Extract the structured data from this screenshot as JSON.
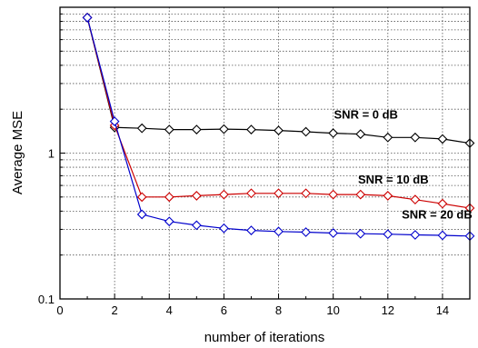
{
  "chart_data": {
    "type": "line",
    "title": "",
    "xlabel": "number of iterations",
    "ylabel": "Average MSE",
    "xlim": [
      0,
      15
    ],
    "ylim": [
      0.1,
      10
    ],
    "yscale": "log",
    "grid": true,
    "x_ticks": [
      "0",
      "2",
      "4",
      "6",
      "8",
      "10",
      "12",
      "14"
    ],
    "y_ticks": [
      "0.1",
      "1"
    ],
    "x": [
      1,
      2,
      3,
      4,
      5,
      6,
      7,
      8,
      9,
      10,
      11,
      12,
      13,
      14,
      15
    ],
    "series": [
      {
        "annotation": "SNR = 0 dB",
        "color": "#000000",
        "marker": "diamond",
        "values": [
          8.5,
          1.5,
          1.48,
          1.45,
          1.45,
          1.46,
          1.45,
          1.43,
          1.4,
          1.37,
          1.35,
          1.28,
          1.28,
          1.25,
          1.17
        ]
      },
      {
        "annotation": "SNR = 10 dB",
        "color": "#cc0000",
        "marker": "diamond",
        "values": [
          8.5,
          1.55,
          0.5,
          0.5,
          0.51,
          0.52,
          0.53,
          0.53,
          0.53,
          0.52,
          0.52,
          0.51,
          0.48,
          0.45,
          0.42
        ]
      },
      {
        "annotation": "SNR = 20 dB",
        "color": "#0000cc",
        "marker": "diamond",
        "values": [
          8.5,
          1.65,
          0.38,
          0.34,
          0.32,
          0.305,
          0.295,
          0.29,
          0.287,
          0.283,
          0.28,
          0.278,
          0.275,
          0.273,
          0.27
        ]
      }
    ]
  }
}
